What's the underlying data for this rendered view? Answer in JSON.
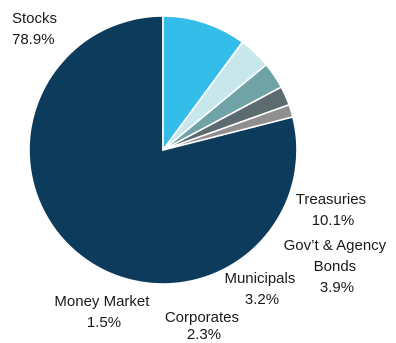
{
  "chart_data": {
    "type": "pie",
    "slices": [
      {
        "name": "Stocks",
        "value": 78.9,
        "value_label": "78.9%",
        "color": "#0d3b5c"
      },
      {
        "name": "Treasuries",
        "value": 10.1,
        "value_label": "10.1%",
        "color": "#33bde8"
      },
      {
        "name": "Gov’t & Agency Bonds",
        "name_lines": [
          "Gov’t & Agency",
          "Bonds"
        ],
        "value": 3.9,
        "value_label": "3.9%",
        "color": "#c8e7ec"
      },
      {
        "name": "Municipals",
        "value": 3.2,
        "value_label": "3.2%",
        "color": "#6fa3a6"
      },
      {
        "name": "Corporates",
        "value": 2.3,
        "value_label": "2.3%",
        "color": "#5b6b6f"
      },
      {
        "name": "Money Market",
        "value": 1.5,
        "value_label": "1.5%",
        "color": "#8f8f8f"
      }
    ]
  }
}
